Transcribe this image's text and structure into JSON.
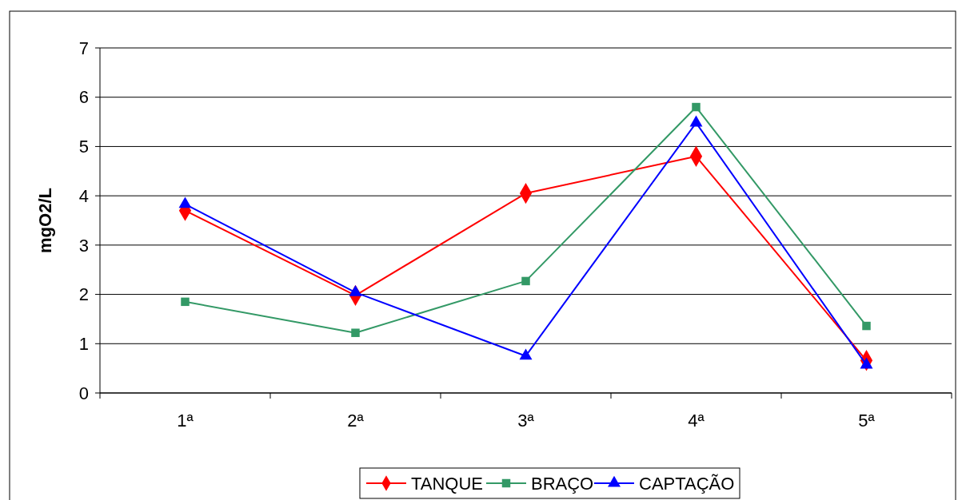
{
  "chart_data": {
    "type": "line",
    "ylabel": "mgO2/L",
    "categories": [
      "1ª",
      "2ª",
      "3ª",
      "4ª",
      "5ª"
    ],
    "ylim": [
      0,
      7
    ],
    "yticks": [
      0,
      1,
      2,
      3,
      4,
      5,
      6,
      7
    ],
    "grid": "y",
    "legend": "bottom",
    "line_style": "solid",
    "series": [
      {
        "name": "TANQUE",
        "color": "#ff0000",
        "marker": "diamond",
        "values": [
          3.7,
          1.98,
          4.05,
          4.8,
          0.66
        ]
      },
      {
        "name": "BRAÇO",
        "color": "#339966",
        "marker": "square",
        "values": [
          1.85,
          1.22,
          2.27,
          5.8,
          1.36
        ]
      },
      {
        "name": "CAPTAÇÃO",
        "color": "#0000ff",
        "marker": "triangle",
        "values": [
          3.83,
          2.04,
          0.75,
          5.48,
          0.57
        ]
      }
    ]
  }
}
